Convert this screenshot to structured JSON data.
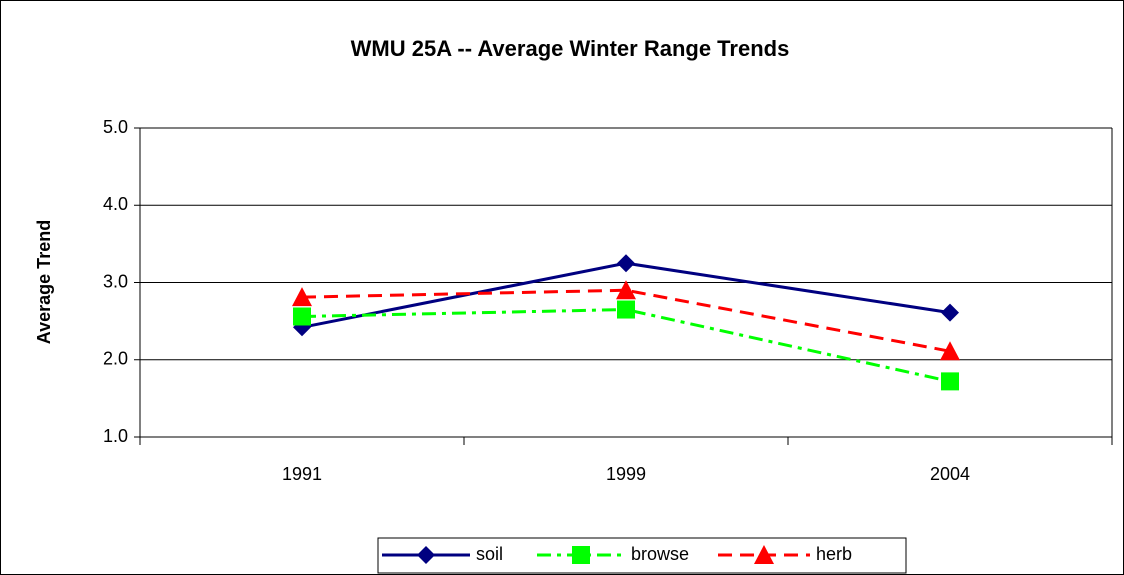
{
  "chart_data": {
    "type": "line",
    "title": "WMU 25A -- Average Winter Range Trends",
    "y_label": "Average Trend",
    "categories": [
      "1991",
      "1999",
      "2004"
    ],
    "series": [
      {
        "name": "soil",
        "color": "#000080",
        "marker": "diamond",
        "dash": "solid",
        "values": [
          2.42,
          3.25,
          2.61
        ]
      },
      {
        "name": "browse",
        "color": "#00ff00",
        "marker": "square",
        "dash": "dashdot",
        "values": [
          2.56,
          2.65,
          1.72
        ]
      },
      {
        "name": "herb",
        "color": "#ff0000",
        "marker": "triangle",
        "dash": "dashed",
        "values": [
          2.81,
          2.9,
          2.11
        ]
      }
    ],
    "ylim": [
      1,
      5
    ],
    "yticks": [
      {
        "value": 1,
        "label": "1.0"
      },
      {
        "value": 2,
        "label": "2.0"
      },
      {
        "value": 3,
        "label": "3.0"
      },
      {
        "value": 4,
        "label": "4.0"
      },
      {
        "value": 5,
        "label": "5.0"
      }
    ],
    "grid": true,
    "legend": "bottom"
  }
}
